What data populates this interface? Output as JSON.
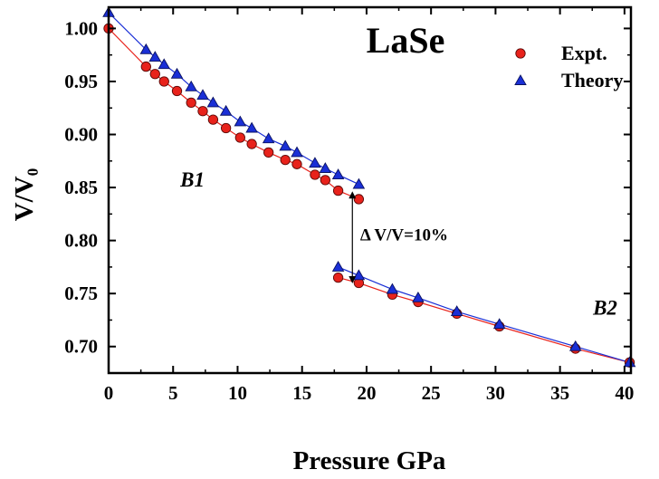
{
  "chart_data": {
    "type": "scatter",
    "title": "LaSe",
    "xlabel": "Pressure GPa",
    "ylabel": "V/V₀",
    "xlim": [
      0,
      40.5
    ],
    "ylim": [
      0.675,
      1.02
    ],
    "x_ticks": [
      0,
      5,
      10,
      15,
      20,
      25,
      30,
      35,
      40
    ],
    "x_tick_labels": [
      "0",
      "5",
      "10",
      "15",
      "20",
      "25",
      "30",
      "35",
      "40"
    ],
    "y_ticks": [
      0.7,
      0.75,
      0.8,
      0.85,
      0.9,
      0.95,
      1.0
    ],
    "y_tick_labels": [
      "0.70",
      "0.75",
      "0.80",
      "0.85",
      "0.90",
      "0.95",
      "1.00"
    ],
    "grid": false,
    "legend_position": "top-right",
    "series": [
      {
        "name": "Expt.",
        "marker": "circle",
        "color": "#e8221b",
        "line_color": "#e8221b",
        "segments": [
          {
            "x": [
              0,
              2.9,
              3.6,
              4.3,
              5.3,
              6.4,
              7.3,
              8.1,
              9.1,
              10.2,
              11.1,
              12.4,
              13.7,
              14.6,
              16.0,
              16.8,
              17.8,
              19.4
            ],
            "y": [
              1.0,
              0.964,
              0.957,
              0.95,
              0.941,
              0.93,
              0.922,
              0.914,
              0.906,
              0.897,
              0.891,
              0.883,
              0.876,
              0.872,
              0.862,
              0.857,
              0.847,
              0.839
            ]
          },
          {
            "x": [
              17.8,
              19.4,
              22.0,
              24.0,
              27.0,
              30.3,
              36.2,
              40.4
            ],
            "y": [
              0.765,
              0.76,
              0.749,
              0.742,
              0.731,
              0.719,
              0.698,
              0.685
            ]
          }
        ]
      },
      {
        "name": "Theory",
        "marker": "triangle",
        "color": "#1a2fd6",
        "line_color": "#1a2fd6",
        "segments": [
          {
            "x": [
              0,
              2.9,
              3.6,
              4.3,
              5.3,
              6.4,
              7.3,
              8.1,
              9.1,
              10.2,
              11.1,
              12.4,
              13.7,
              14.6,
              16.0,
              16.8,
              17.8,
              19.4
            ],
            "y": [
              1.015,
              0.98,
              0.973,
              0.966,
              0.957,
              0.945,
              0.937,
              0.93,
              0.922,
              0.912,
              0.906,
              0.896,
              0.889,
              0.883,
              0.873,
              0.868,
              0.862,
              0.853
            ]
          },
          {
            "x": [
              17.8,
              19.4,
              22.0,
              24.0,
              27.0,
              30.3,
              36.2,
              40.4
            ],
            "y": [
              0.775,
              0.767,
              0.754,
              0.746,
              0.733,
              0.721,
              0.7,
              0.685
            ]
          }
        ]
      }
    ],
    "annotations": [
      {
        "text": "B1",
        "x": 6.5,
        "y": 0.851
      },
      {
        "text": "B2",
        "x": 38.5,
        "y": 0.73
      },
      {
        "text": "Δ V/V=10%",
        "x": 19.5,
        "y": 0.8
      }
    ],
    "transition_arrow": {
      "x": 18.9,
      "y_from": 0.843,
      "y_to": 0.763
    }
  }
}
